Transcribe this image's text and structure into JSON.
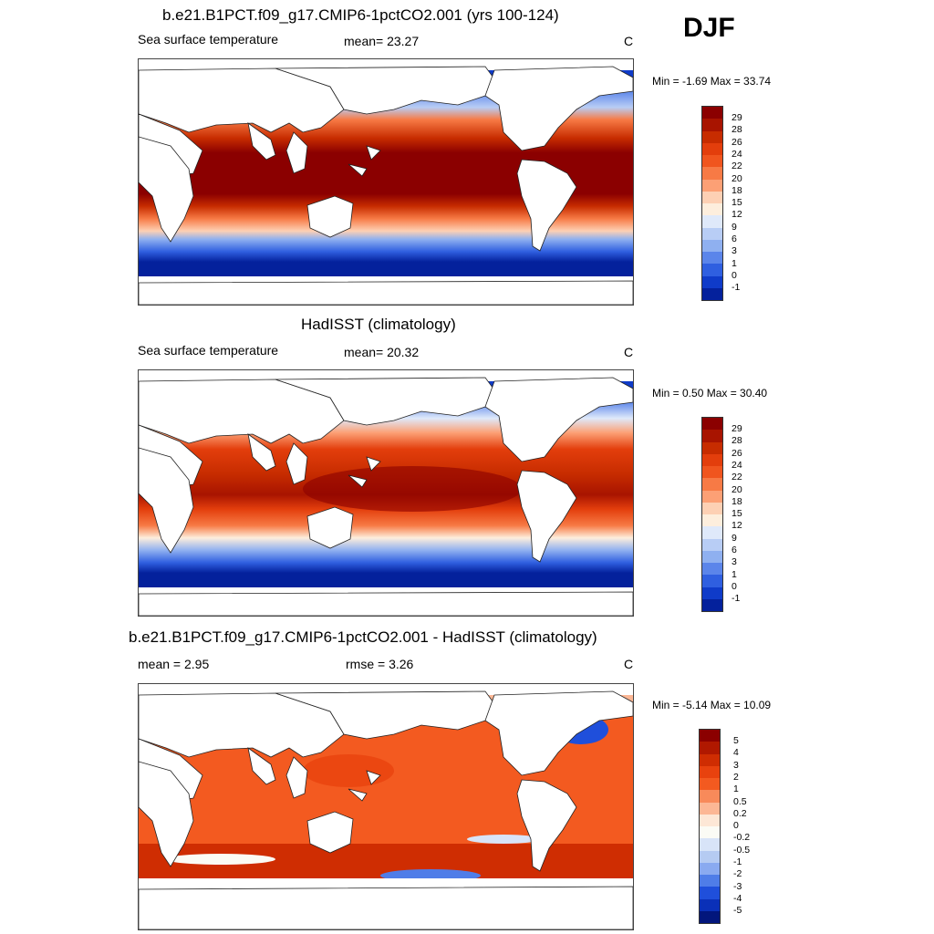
{
  "season": "DJF",
  "panels": [
    {
      "title": "b.e21.B1PCT.f09_g17.CMIP6-1pctCO2.001 (yrs 100-124)",
      "left_label": "Sea surface temperature",
      "center_label": "mean=  23.27",
      "unit": "C",
      "minmax": "Min =  -1.69 Max =  33.74",
      "colorbar_labels": [
        "29",
        "28",
        "26",
        "24",
        "22",
        "20",
        "18",
        "15",
        "12",
        "9",
        "6",
        "3",
        "1",
        "0",
        "-1"
      ]
    },
    {
      "title": "HadISST (climatology)",
      "left_label": "Sea surface temperature",
      "center_label": "mean=  20.32",
      "unit": "C",
      "minmax": "Min =   0.50 Max =  30.40",
      "colorbar_labels": [
        "29",
        "28",
        "26",
        "24",
        "22",
        "20",
        "18",
        "15",
        "12",
        "9",
        "6",
        "3",
        "1",
        "0",
        "-1"
      ]
    },
    {
      "title": "b.e21.B1PCT.f09_g17.CMIP6-1pctCO2.001 - HadISST (climatology)",
      "left_label": "mean =   2.95",
      "center_label": "rmse =   3.26",
      "unit": "C",
      "minmax": "Min =  -5.14 Max =  10.09",
      "colorbar_labels": [
        "5",
        "4",
        "3",
        "2",
        "1",
        "0.5",
        "0.2",
        "0",
        "-0.2",
        "-0.5",
        "-1",
        "-2",
        "-3",
        "-4",
        "-5"
      ]
    }
  ],
  "colors": {
    "sst_scale": [
      "#8b0000",
      "#a81400",
      "#c72c00",
      "#e33e0c",
      "#f0551e",
      "#f77a45",
      "#fca075",
      "#fdd0b4",
      "#fdeedd",
      "#dfe9fa",
      "#b8cdf5",
      "#8fb0f0",
      "#5b85ea",
      "#2f5fe0",
      "#0f3bc9",
      "#04219c"
    ],
    "diff_scale": [
      "#8b0000",
      "#b01800",
      "#cf2d02",
      "#e8420e",
      "#f35a20",
      "#f88a5a",
      "#fcb795",
      "#fde7d6",
      "#fbfbf5",
      "#d8e4f8",
      "#b5cbf2",
      "#8aaaf0",
      "#4f7de8",
      "#1f4fdb",
      "#0a30b8",
      "#02167c"
    ],
    "land": "#ffffff",
    "coast": "#222222"
  }
}
